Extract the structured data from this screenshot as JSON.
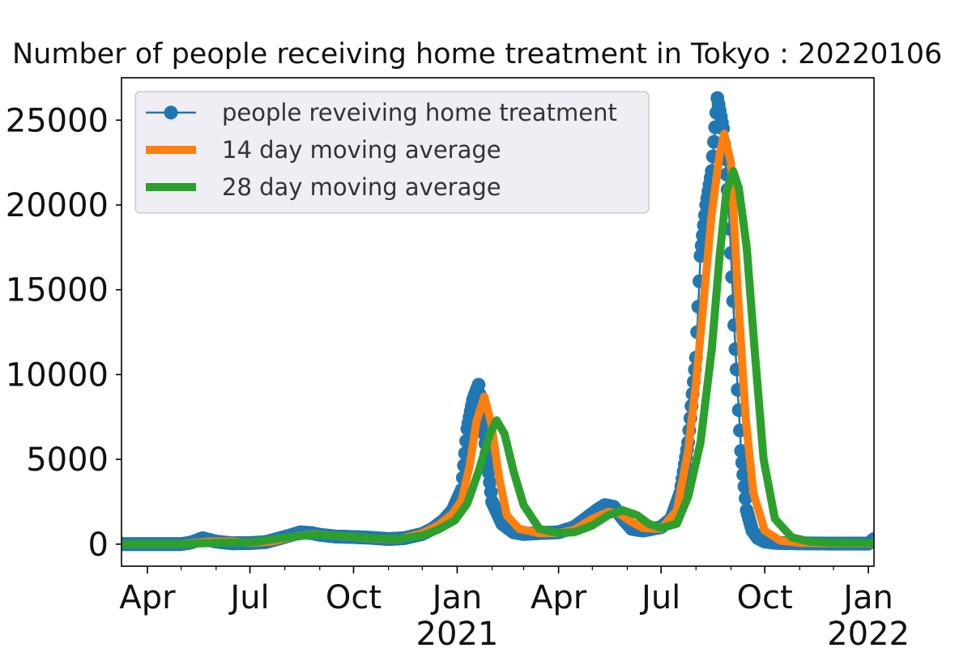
{
  "chart_data": {
    "type": "line",
    "title": "Number of people receiving home treatment in Tokyo : 20220106",
    "xlabel": "",
    "ylabel": "",
    "xlim": [
      "2020-03-09",
      "2022-01-06"
    ],
    "ylim": [
      -1300,
      27500
    ],
    "grid": false,
    "legend_position": "top-left",
    "x_ticks": [
      {
        "date": "2020-04-01",
        "label": "Apr",
        "sublabel": ""
      },
      {
        "date": "2020-07-01",
        "label": "Jul",
        "sublabel": ""
      },
      {
        "date": "2020-10-01",
        "label": "Oct",
        "sublabel": ""
      },
      {
        "date": "2021-01-01",
        "label": "Jan",
        "sublabel": "2021"
      },
      {
        "date": "2021-04-01",
        "label": "Apr",
        "sublabel": ""
      },
      {
        "date": "2021-07-01",
        "label": "Jul",
        "sublabel": ""
      },
      {
        "date": "2021-10-01",
        "label": "Oct",
        "sublabel": ""
      },
      {
        "date": "2022-01-01",
        "label": "Jan",
        "sublabel": "2022"
      }
    ],
    "y_ticks": [
      0,
      5000,
      10000,
      15000,
      20000,
      25000
    ],
    "series": [
      {
        "name": "people reveiving home treatment",
        "color": "#1f77b4",
        "style": "line-markers",
        "x": [
          "2020-03-09",
          "2020-03-20",
          "2020-04-01",
          "2020-04-15",
          "2020-05-01",
          "2020-05-10",
          "2020-05-20",
          "2020-06-01",
          "2020-06-15",
          "2020-07-01",
          "2020-07-15",
          "2020-07-25",
          "2020-08-05",
          "2020-08-15",
          "2020-08-25",
          "2020-09-01",
          "2020-09-15",
          "2020-10-01",
          "2020-10-15",
          "2020-11-01",
          "2020-11-15",
          "2020-12-01",
          "2020-12-10",
          "2020-12-20",
          "2020-12-28",
          "2021-01-05",
          "2021-01-10",
          "2021-01-15",
          "2021-01-20",
          "2021-01-25",
          "2021-02-01",
          "2021-02-10",
          "2021-02-20",
          "2021-03-01",
          "2021-03-15",
          "2021-04-01",
          "2021-04-15",
          "2021-04-25",
          "2021-05-05",
          "2021-05-12",
          "2021-05-20",
          "2021-05-28",
          "2021-06-05",
          "2021-06-15",
          "2021-07-01",
          "2021-07-10",
          "2021-07-18",
          "2021-07-25",
          "2021-08-01",
          "2021-08-05",
          "2021-08-10",
          "2021-08-15",
          "2021-08-20",
          "2021-08-25",
          "2021-08-30",
          "2021-09-05",
          "2021-09-10",
          "2021-09-15",
          "2021-09-20",
          "2021-09-25",
          "2021-10-01",
          "2021-10-10",
          "2021-10-20",
          "2021-11-01",
          "2021-11-15",
          "2021-12-01",
          "2021-12-15",
          "2022-01-01",
          "2022-01-06"
        ],
        "values": [
          0,
          0,
          0,
          0,
          0,
          100,
          350,
          150,
          50,
          60,
          120,
          300,
          500,
          700,
          650,
          550,
          450,
          420,
          380,
          300,
          350,
          600,
          900,
          1400,
          2000,
          3200,
          6800,
          8500,
          9400,
          6500,
          2500,
          1200,
          700,
          600,
          650,
          700,
          1000,
          1500,
          2000,
          2300,
          2200,
          1500,
          900,
          800,
          1000,
          1500,
          3000,
          6000,
          11000,
          17000,
          20000,
          22000,
          26300,
          24500,
          20000,
          11500,
          5500,
          2000,
          800,
          350,
          150,
          80,
          60,
          50,
          40,
          30,
          30,
          30,
          300
        ]
      },
      {
        "name": "14 day moving average",
        "color": "#ff7f0e",
        "style": "thick-line",
        "x": [
          "2020-03-09",
          "2020-04-01",
          "2020-05-01",
          "2020-05-25",
          "2020-06-15",
          "2020-07-01",
          "2020-07-20",
          "2020-08-10",
          "2020-08-25",
          "2020-09-10",
          "2020-10-01",
          "2020-10-20",
          "2020-11-10",
          "2020-12-01",
          "2020-12-15",
          "2020-12-28",
          "2021-01-05",
          "2021-01-12",
          "2021-01-18",
          "2021-01-25",
          "2021-01-31",
          "2021-02-07",
          "2021-02-14",
          "2021-02-25",
          "2021-03-15",
          "2021-04-01",
          "2021-04-15",
          "2021-05-01",
          "2021-05-15",
          "2021-05-25",
          "2021-06-05",
          "2021-06-15",
          "2021-07-01",
          "2021-07-15",
          "2021-07-25",
          "2021-08-01",
          "2021-08-08",
          "2021-08-15",
          "2021-08-22",
          "2021-08-26",
          "2021-09-01",
          "2021-09-07",
          "2021-09-14",
          "2021-09-21",
          "2021-10-01",
          "2021-10-15",
          "2021-11-01",
          "2021-12-01",
          "2022-01-06"
        ],
        "values": [
          0,
          0,
          0,
          150,
          150,
          80,
          150,
          450,
          580,
          520,
          420,
          330,
          280,
          650,
          1100,
          1800,
          2600,
          4600,
          7200,
          8700,
          7200,
          4000,
          1700,
          900,
          650,
          650,
          850,
          1500,
          1900,
          1800,
          1300,
          950,
          900,
          2000,
          5500,
          9500,
          14500,
          19500,
          23000,
          24200,
          22500,
          15000,
          7500,
          3000,
          800,
          200,
          80,
          50,
          30
        ]
      },
      {
        "name": "28 day moving average",
        "color": "#2ca02c",
        "style": "thick-line",
        "x": [
          "2020-03-09",
          "2020-04-01",
          "2020-05-01",
          "2020-06-01",
          "2020-07-01",
          "2020-08-01",
          "2020-08-25",
          "2020-09-15",
          "2020-10-01",
          "2020-10-20",
          "2020-11-10",
          "2020-12-01",
          "2020-12-15",
          "2020-12-30",
          "2021-01-10",
          "2021-01-20",
          "2021-01-30",
          "2021-02-05",
          "2021-02-12",
          "2021-02-20",
          "2021-03-01",
          "2021-03-15",
          "2021-04-01",
          "2021-04-15",
          "2021-05-01",
          "2021-05-15",
          "2021-05-28",
          "2021-06-10",
          "2021-06-20",
          "2021-07-01",
          "2021-07-15",
          "2021-07-25",
          "2021-08-05",
          "2021-08-15",
          "2021-08-22",
          "2021-08-28",
          "2021-09-03",
          "2021-09-08",
          "2021-09-15",
          "2021-09-22",
          "2021-09-30",
          "2021-10-10",
          "2021-10-25",
          "2021-11-10",
          "2021-12-01",
          "2022-01-06"
        ],
        "values": [
          0,
          0,
          0,
          80,
          100,
          380,
          550,
          500,
          430,
          350,
          300,
          500,
          850,
          1400,
          2400,
          4300,
          6500,
          7300,
          6500,
          4300,
          2300,
          900,
          650,
          700,
          1100,
          1700,
          2000,
          1700,
          1200,
          950,
          1200,
          2800,
          6000,
          11500,
          17000,
          20800,
          22000,
          21000,
          17500,
          11500,
          5000,
          1500,
          400,
          150,
          80,
          50
        ]
      }
    ]
  }
}
